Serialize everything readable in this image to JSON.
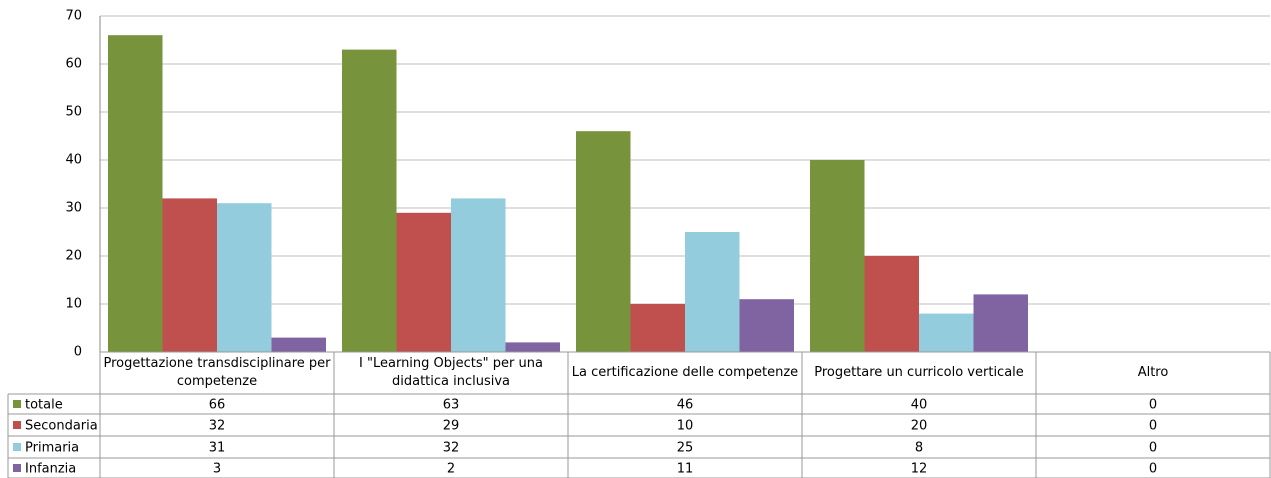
{
  "chart_data": {
    "type": "bar",
    "categories": [
      "Progettazione transdisciplinare per competenze",
      "I \"Learning Objects\" per una didattica inclusiva",
      "La certificazione delle competenze",
      "Progettare un curricolo verticale",
      "Altro"
    ],
    "series": [
      {
        "name": "totale",
        "color": "#77933c",
        "values": [
          66,
          63,
          46,
          40,
          0
        ]
      },
      {
        "name": "Secondaria",
        "color": "#c0504d",
        "values": [
          32,
          29,
          10,
          20,
          0
        ]
      },
      {
        "name": "Primaria",
        "color": "#93cddd",
        "values": [
          31,
          32,
          25,
          8,
          0
        ]
      },
      {
        "name": "Infanzia",
        "color": "#8064a2",
        "values": [
          3,
          2,
          11,
          12,
          0
        ]
      }
    ],
    "ylim": [
      0,
      70
    ],
    "yticks": [
      0,
      10,
      20,
      30,
      40,
      50,
      60,
      70
    ],
    "grid": true,
    "data_table": true
  }
}
